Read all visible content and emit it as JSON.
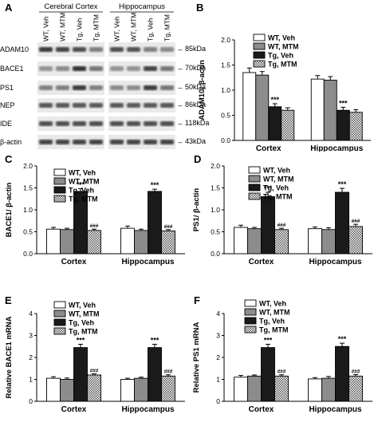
{
  "blot": {
    "letter": "A",
    "groups": [
      "Cerebral Cortex",
      "Hippocampus"
    ],
    "lanes": [
      "WT, Veh",
      "WT, MTM",
      "Tg, Veh",
      "Tg, MTM",
      "WT, Veh",
      "WT, MTM",
      "Tg, Veh",
      "Tg, MTM"
    ],
    "rows": [
      {
        "protein": "ADAM10",
        "size": "85kDa"
      },
      {
        "protein": "BACE1",
        "size": "70kDa"
      },
      {
        "protein": "PS1",
        "size": "50kDa"
      },
      {
        "protein": "NEP",
        "size": "86kDa"
      },
      {
        "protein": "IDE",
        "size": "118kDa"
      },
      {
        "protein": "β-actin",
        "size": "43kDa"
      }
    ]
  },
  "legend_names": [
    "WT, Veh",
    "WT, MTM",
    "Tg, Veh",
    "Tg, MTM"
  ],
  "colors": {
    "wt_veh": "#ffffff",
    "wt_mtm": "#8c8c8c",
    "tg_veh": "#1a1a1a",
    "tg_mtm_pattern": "checker"
  },
  "chart_data": [
    {
      "letter": "B",
      "type": "bar",
      "categories": [
        "Cortex",
        "Hippocampus"
      ],
      "ylabel": "ADAM10/ β-actin",
      "ylim": [
        0,
        2.0
      ],
      "yticks": [
        "0.0",
        "0.5",
        "1.0",
        "1.5",
        "2.0"
      ],
      "series": [
        {
          "name": "WT, Veh",
          "values": [
            1.35,
            1.22
          ],
          "err": [
            0.09,
            0.07
          ]
        },
        {
          "name": "WT, MTM",
          "values": [
            1.3,
            1.2
          ],
          "err": [
            0.07,
            0.07
          ]
        },
        {
          "name": "Tg, Veh",
          "values": [
            0.67,
            0.6
          ],
          "err": [
            0.06,
            0.06
          ]
        },
        {
          "name": "Tg, MTM",
          "values": [
            0.6,
            0.56
          ],
          "err": [
            0.05,
            0.05
          ]
        }
      ],
      "annotations": [
        {
          "category": 0,
          "series": 2,
          "text": "***"
        },
        {
          "category": 1,
          "series": 2,
          "text": "***"
        }
      ]
    },
    {
      "letter": "C",
      "type": "bar",
      "categories": [
        "Cortex",
        "Hippocampus"
      ],
      "ylabel": "BACE1/ β-actin",
      "ylim": [
        0,
        2.0
      ],
      "yticks": [
        "0.0",
        "0.5",
        "1.0",
        "1.5",
        "2.0"
      ],
      "series": [
        {
          "name": "WT, Veh",
          "values": [
            0.56,
            0.58
          ],
          "err": [
            0.04,
            0.05
          ]
        },
        {
          "name": "WT, MTM",
          "values": [
            0.55,
            0.53
          ],
          "err": [
            0.03,
            0.03
          ]
        },
        {
          "name": "Tg, Veh",
          "values": [
            1.42,
            1.42
          ],
          "err": [
            0.06,
            0.05
          ]
        },
        {
          "name": "Tg, MTM",
          "values": [
            0.53,
            0.52
          ],
          "err": [
            0.03,
            0.03
          ]
        }
      ],
      "annotations": [
        {
          "category": 0,
          "series": 2,
          "text": "***"
        },
        {
          "category": 1,
          "series": 2,
          "text": "***"
        },
        {
          "category": 0,
          "series": 3,
          "text": "###"
        },
        {
          "category": 1,
          "series": 3,
          "text": "###"
        }
      ]
    },
    {
      "letter": "D",
      "type": "bar",
      "categories": [
        "Cortex",
        "Hippocampus"
      ],
      "ylabel": "PS1/ β-actin",
      "ylim": [
        0,
        2.0
      ],
      "yticks": [
        "0.0",
        "0.5",
        "1.0",
        "1.5",
        "2.0"
      ],
      "series": [
        {
          "name": "WT, Veh",
          "values": [
            0.6,
            0.57
          ],
          "err": [
            0.05,
            0.04
          ]
        },
        {
          "name": "WT, MTM",
          "values": [
            0.57,
            0.55
          ],
          "err": [
            0.03,
            0.04
          ]
        },
        {
          "name": "Tg, Veh",
          "values": [
            1.3,
            1.4
          ],
          "err": [
            0.1,
            0.09
          ]
        },
        {
          "name": "Tg, MTM",
          "values": [
            0.55,
            0.62
          ],
          "err": [
            0.03,
            0.05
          ]
        }
      ],
      "annotations": [
        {
          "category": 0,
          "series": 2,
          "text": "***"
        },
        {
          "category": 1,
          "series": 2,
          "text": "***"
        },
        {
          "category": 0,
          "series": 3,
          "text": "###"
        },
        {
          "category": 1,
          "series": 3,
          "text": "###"
        }
      ]
    },
    {
      "letter": "E",
      "type": "bar",
      "categories": [
        "Cortex",
        "Hippocampus"
      ],
      "ylabel": "Relative BACE1 mRNA",
      "ylim": [
        0,
        4
      ],
      "yticks": [
        "0",
        "1",
        "2",
        "3",
        "4"
      ],
      "series": [
        {
          "name": "WT, Veh",
          "values": [
            1.05,
            1.0
          ],
          "err": [
            0.07,
            0.05
          ]
        },
        {
          "name": "WT, MTM",
          "values": [
            1.0,
            1.05
          ],
          "err": [
            0.06,
            0.05
          ]
        },
        {
          "name": "Tg, Veh",
          "values": [
            2.45,
            2.45
          ],
          "err": [
            0.15,
            0.15
          ]
        },
        {
          "name": "Tg, MTM",
          "values": [
            1.2,
            1.15
          ],
          "err": [
            0.05,
            0.06
          ]
        }
      ],
      "annotations": [
        {
          "category": 0,
          "series": 2,
          "text": "***"
        },
        {
          "category": 1,
          "series": 2,
          "text": "***"
        },
        {
          "category": 0,
          "series": 3,
          "text": "###"
        },
        {
          "category": 1,
          "series": 3,
          "text": "###"
        }
      ]
    },
    {
      "letter": "F",
      "type": "bar",
      "categories": [
        "Cortex",
        "Hippocampus"
      ],
      "ylabel": "Relative PS1 mRNA",
      "ylim": [
        0,
        4
      ],
      "yticks": [
        "0",
        "1",
        "2",
        "3",
        "4"
      ],
      "series": [
        {
          "name": "WT, Veh",
          "values": [
            1.1,
            1.02
          ],
          "err": [
            0.08,
            0.06
          ]
        },
        {
          "name": "WT, MTM",
          "values": [
            1.15,
            1.05
          ],
          "err": [
            0.05,
            0.08
          ]
        },
        {
          "name": "Tg, Veh",
          "values": [
            2.45,
            2.5
          ],
          "err": [
            0.15,
            0.15
          ]
        },
        {
          "name": "Tg, MTM",
          "values": [
            1.15,
            1.15
          ],
          "err": [
            0.06,
            0.07
          ]
        }
      ],
      "annotations": [
        {
          "category": 0,
          "series": 2,
          "text": "***"
        },
        {
          "category": 1,
          "series": 2,
          "text": "***"
        },
        {
          "category": 0,
          "series": 3,
          "text": "###"
        },
        {
          "category": 1,
          "series": 3,
          "text": "###"
        }
      ]
    }
  ]
}
